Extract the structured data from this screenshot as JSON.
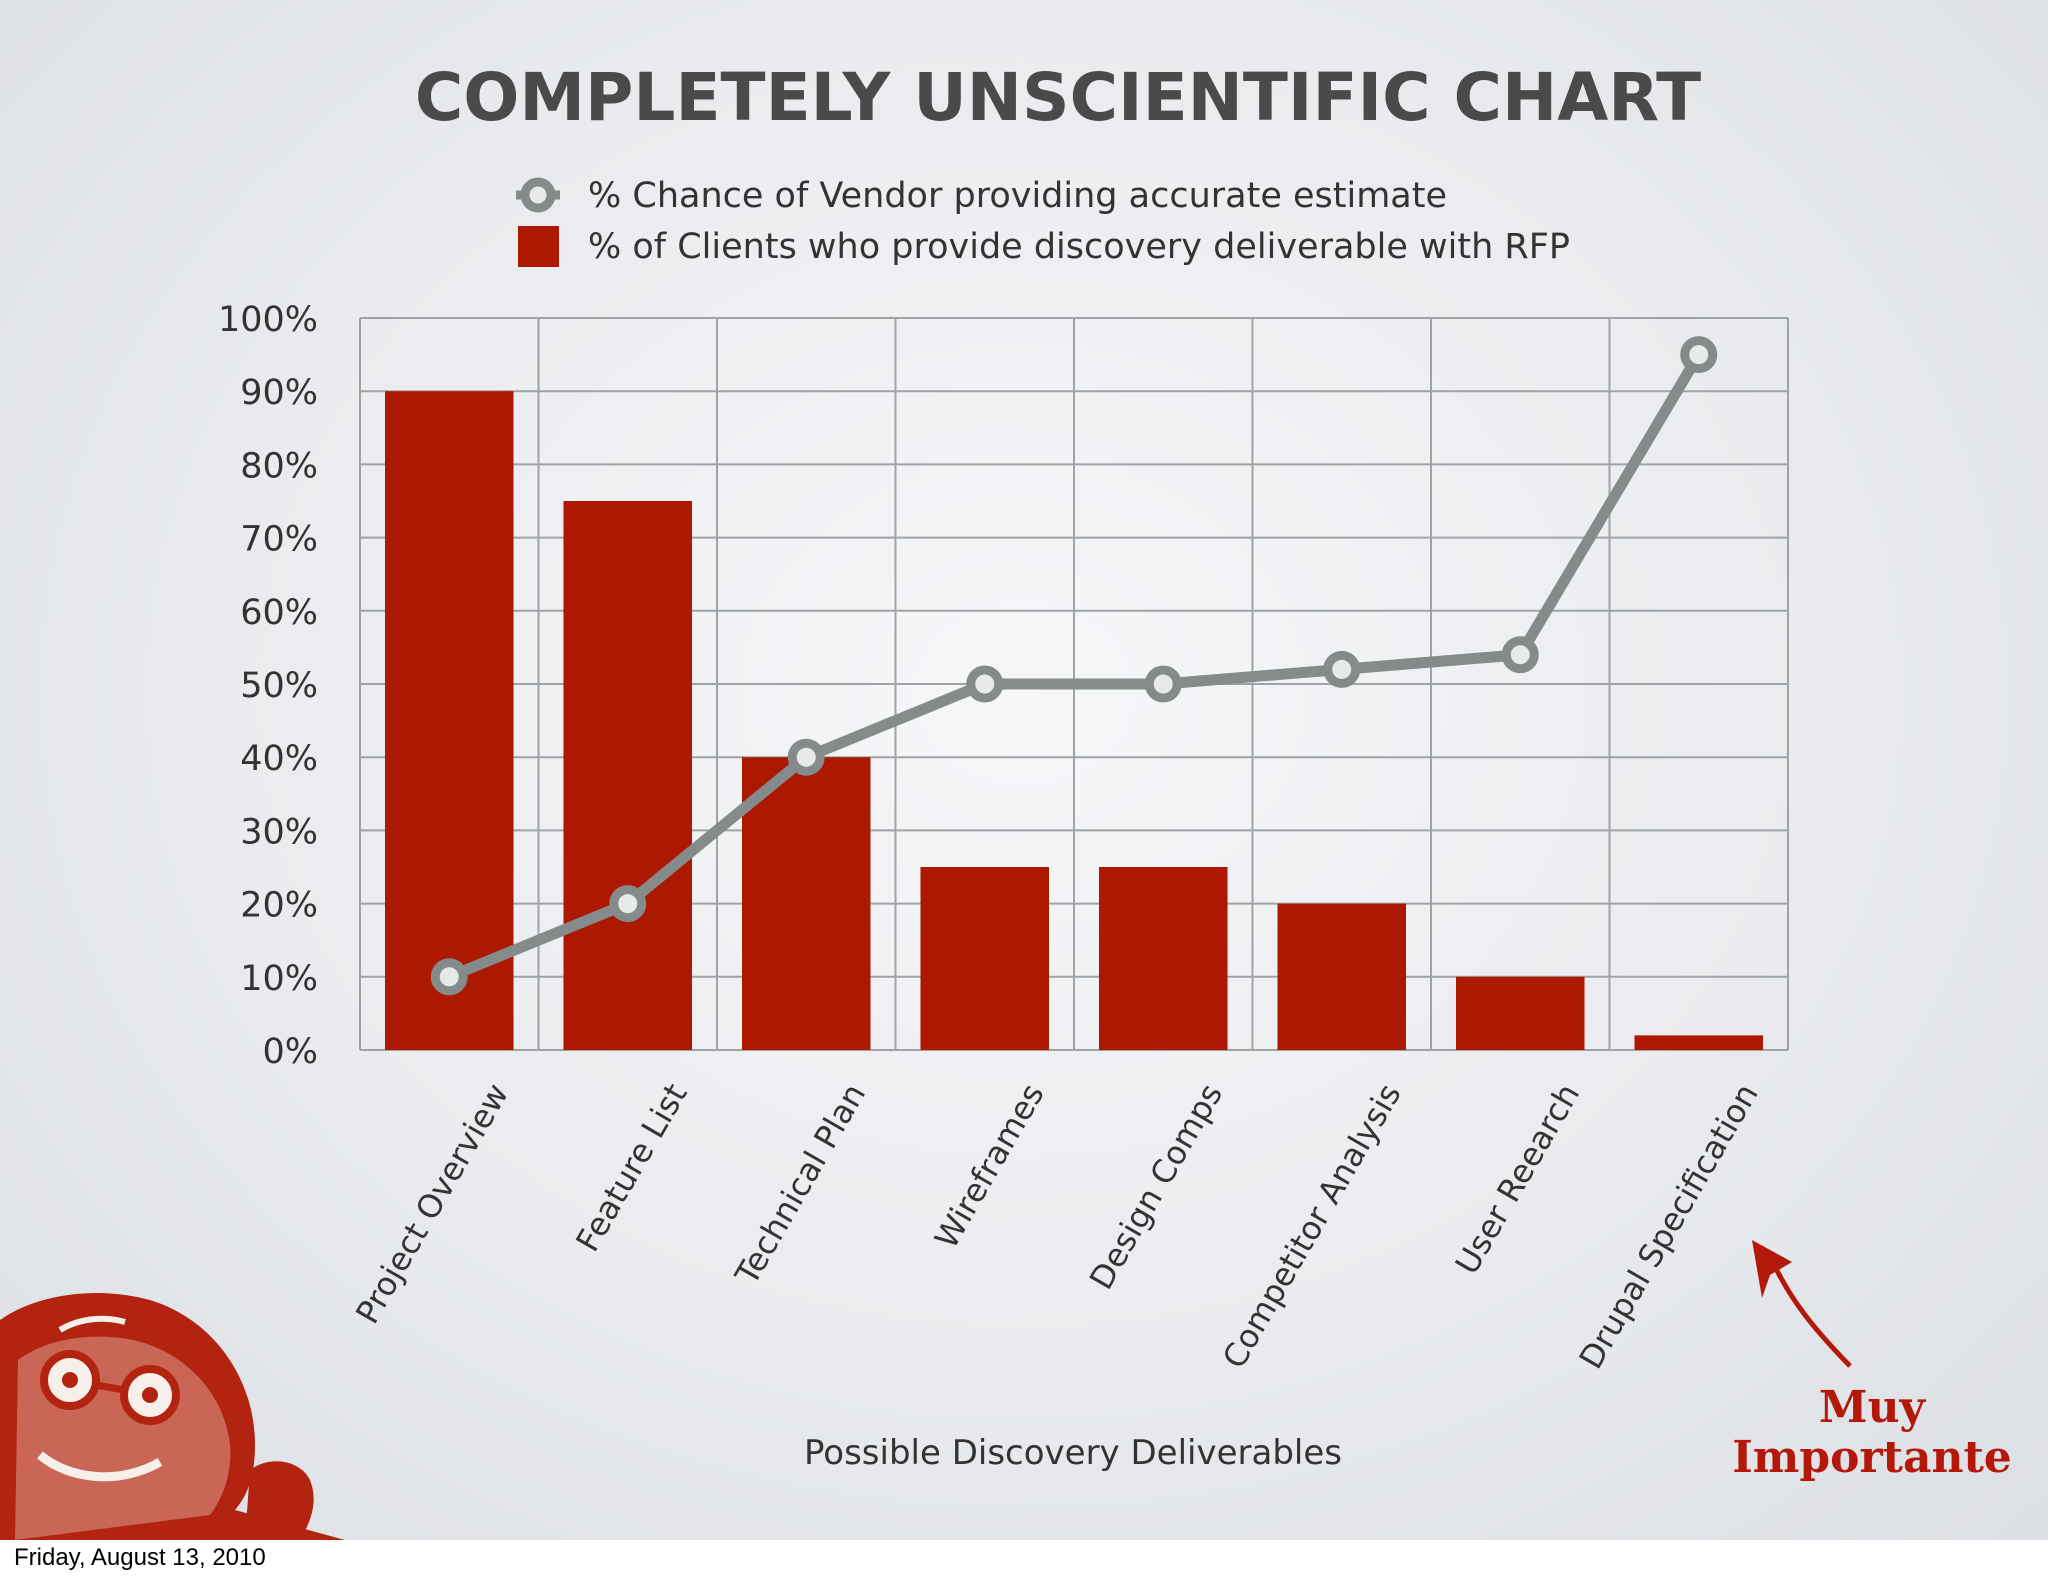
{
  "footer": {
    "date": "Friday, August 13, 2010"
  },
  "annotation": {
    "line1": "Muy",
    "line2": "Importante"
  },
  "colors": {
    "bar": "#ad1800",
    "line": "#858a8a",
    "marker_fill": "#e8e9ea",
    "grid": "#a0a3a6",
    "annotation": "#b3180a"
  },
  "chart_data": {
    "type": "bar",
    "title": "COMPLETELY UNSCIENTIFIC CHART",
    "xlabel": "Possible Discovery Deliverables",
    "ylabel": "",
    "ylim": [
      0,
      100
    ],
    "y_ticks": [
      "0%",
      "10%",
      "20%",
      "30%",
      "40%",
      "50%",
      "60%",
      "70%",
      "80%",
      "90%",
      "100%"
    ],
    "grid": true,
    "legend_position": "top-center",
    "categories": [
      "Project Overview",
      "Feature List",
      "Technical Plan",
      "Wireframes",
      "Design Comps",
      "Competitor Analysis",
      "User Reearch",
      "Drupal Specification"
    ],
    "series": [
      {
        "name": "% Chance of Vendor providing accurate estimate",
        "type": "line",
        "values": [
          10,
          20,
          40,
          50,
          50,
          52,
          54,
          95
        ]
      },
      {
        "name": "% of Clients who provide discovery deliverable with RFP",
        "type": "bar",
        "values": [
          90,
          75,
          40,
          25,
          25,
          20,
          10,
          2
        ]
      }
    ]
  }
}
